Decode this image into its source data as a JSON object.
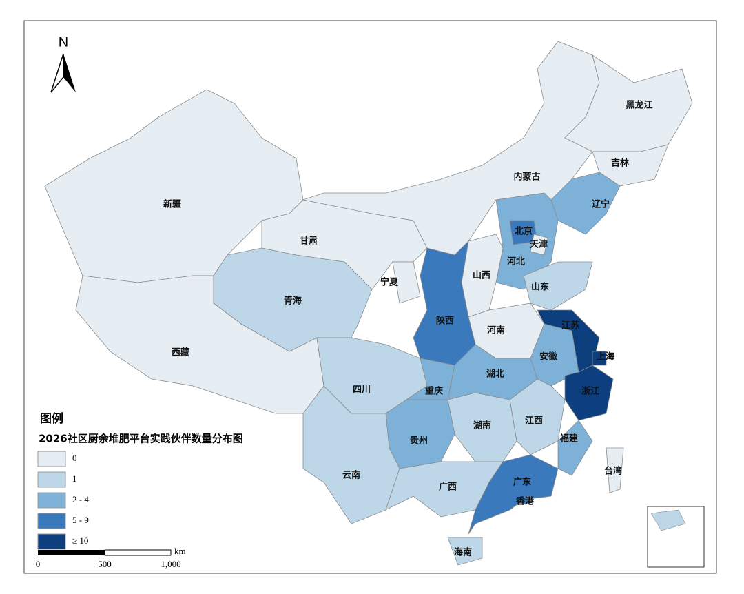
{
  "north": "N",
  "legend": {
    "title": "图例",
    "subtitle": "2026社区厨余堆肥平台实践伙伴数量分布图",
    "items": [
      {
        "label": "0",
        "color": "#e6eef4"
      },
      {
        "label": "1",
        "color": "#bdd7e9"
      },
      {
        "label": "2 - 4",
        "color": "#7eb1d8"
      },
      {
        "label": "5 - 9",
        "color": "#3a79bb"
      },
      {
        "label": "≥ 10",
        "color": "#0d3f7f"
      }
    ]
  },
  "scale": {
    "labels": [
      "0",
      "500",
      "1,000"
    ],
    "unit": "km"
  },
  "provinces": [
    {
      "name": "新疆",
      "class": 0
    },
    {
      "name": "西藏",
      "class": 0
    },
    {
      "name": "青海",
      "class": 1
    },
    {
      "name": "甘肃",
      "class": 0
    },
    {
      "name": "内蒙古",
      "class": 0
    },
    {
      "name": "黑龙江",
      "class": 0
    },
    {
      "name": "吉林",
      "class": 0
    },
    {
      "name": "辽宁",
      "class": 2
    },
    {
      "name": "河北",
      "class": 2
    },
    {
      "name": "北京",
      "class": 3
    },
    {
      "name": "天津",
      "class": 0
    },
    {
      "name": "山西",
      "class": 0
    },
    {
      "name": "山东",
      "class": 1
    },
    {
      "name": "河南",
      "class": 0
    },
    {
      "name": "宁夏",
      "class": 0
    },
    {
      "name": "陕西",
      "class": 3
    },
    {
      "name": "四川",
      "class": 1
    },
    {
      "name": "重庆",
      "class": 2
    },
    {
      "name": "湖北",
      "class": 2
    },
    {
      "name": "安徽",
      "class": 2
    },
    {
      "name": "江苏",
      "class": 4
    },
    {
      "name": "上海",
      "class": 4
    },
    {
      "name": "浙江",
      "class": 4
    },
    {
      "name": "江西",
      "class": 1
    },
    {
      "name": "湖南",
      "class": 1
    },
    {
      "name": "贵州",
      "class": 2
    },
    {
      "name": "云南",
      "class": 1
    },
    {
      "name": "广西",
      "class": 1
    },
    {
      "name": "广东",
      "class": 3
    },
    {
      "name": "香港",
      "class": 3
    },
    {
      "name": "福建",
      "class": 2
    },
    {
      "name": "海南",
      "class": 1
    },
    {
      "name": "台湾",
      "class": 0
    }
  ]
}
